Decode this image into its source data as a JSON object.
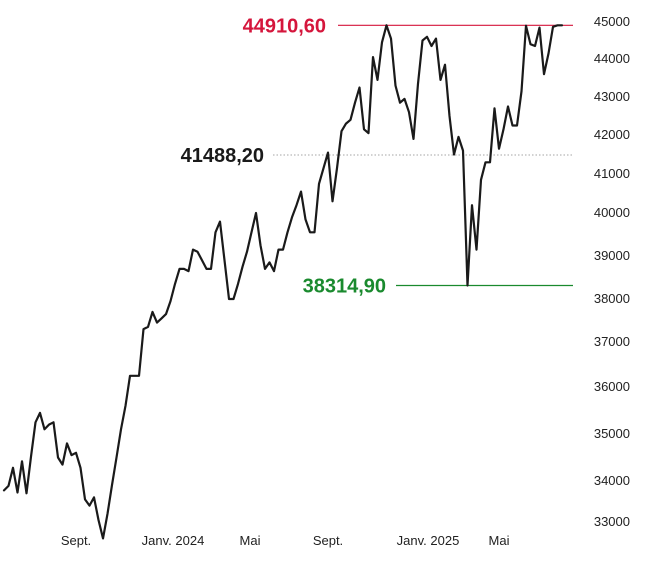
{
  "chart_data": {
    "type": "line",
    "x_ticks": [
      "Sept.",
      "Janv. 2024",
      "Mai",
      "Sept.",
      "Janv. 2025",
      "Mai"
    ],
    "y_ticks": [
      "33000",
      "34000",
      "35000",
      "36000",
      "37000",
      "38000",
      "39000",
      "40000",
      "41000",
      "42000",
      "43000",
      "44000",
      "45000"
    ],
    "ylim": [
      33000,
      45000
    ],
    "grid": false,
    "series": [
      {
        "values": [
          33770,
          33880,
          34280,
          33720,
          34420,
          33700,
          34520,
          35250,
          35450,
          35100,
          35200,
          35250,
          34500,
          34350,
          34800,
          34550,
          34600,
          34280,
          33550,
          33400,
          33600,
          33050,
          32600,
          33200,
          33900,
          34500,
          35100,
          35600,
          36250,
          36250,
          36250,
          37300,
          37350,
          37700,
          37450,
          37550,
          37650,
          37950,
          38350,
          38700,
          38700,
          38650,
          39150,
          39100,
          38900,
          38700,
          38700,
          39550,
          39800,
          38900,
          38000,
          38000,
          38350,
          38750,
          39100,
          39550,
          40000,
          39250,
          38700,
          38850,
          38650,
          39150,
          39150,
          39550,
          39900,
          40200,
          40550,
          39850,
          39550,
          39550,
          40750,
          41150,
          41550,
          40300,
          41150,
          42100,
          42300,
          42400,
          42850,
          43250,
          42150,
          42050,
          44050,
          43450,
          44450,
          44910,
          44550,
          43300,
          42850,
          42950,
          42600,
          41900,
          43350,
          44500,
          44600,
          44350,
          44550,
          43450,
          43850,
          42500,
          41500,
          41950,
          41600,
          38315,
          40200,
          39150,
          40850,
          41300,
          41300,
          42700,
          41650,
          42150,
          42750,
          42250,
          42250,
          43150,
          44900,
          44400,
          44350,
          44850,
          43600,
          44150,
          44870,
          44910,
          44910
        ]
      }
    ],
    "annotations": [
      {
        "label": "44910,60",
        "value": 44910.6,
        "color": "#d5163c"
      },
      {
        "label": "41488,20",
        "value": 41488.2,
        "color": "#1a1a1a"
      },
      {
        "label": "38314,90",
        "value": 38314.9,
        "color": "#1a8a2e"
      }
    ]
  }
}
